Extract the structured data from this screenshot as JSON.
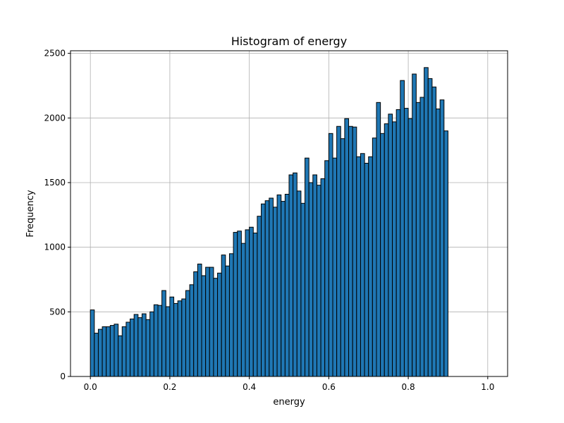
{
  "chart_data": {
    "type": "bar",
    "title": "Histogram of energy",
    "xlabel": "energy",
    "ylabel": "Frequency",
    "xlim": [
      -0.05,
      1.05
    ],
    "ylim": [
      0,
      2520
    ],
    "grid": true,
    "bar_color": "#1f77b4",
    "edge_color": "#000000",
    "x_ticks": [
      0.0,
      0.2,
      0.4,
      0.6,
      0.8,
      1.0
    ],
    "x_tick_labels": [
      "0.0",
      "0.2",
      "0.4",
      "0.6",
      "0.8",
      "1.0"
    ],
    "y_ticks": [
      0,
      500,
      1000,
      1500,
      2000,
      2500
    ],
    "y_tick_labels": [
      "0",
      "500",
      "1000",
      "1500",
      "2000",
      "2500"
    ],
    "bin_start": 0.0,
    "bin_width": 0.01,
    "values": [
      515,
      335,
      365,
      385,
      385,
      395,
      405,
      315,
      385,
      420,
      445,
      480,
      455,
      485,
      440,
      500,
      555,
      550,
      665,
      540,
      615,
      565,
      585,
      600,
      665,
      710,
      810,
      870,
      780,
      845,
      845,
      760,
      800,
      940,
      855,
      950,
      1115,
      1125,
      1030,
      1135,
      1155,
      1110,
      1240,
      1335,
      1360,
      1380,
      1310,
      1405,
      1355,
      1410,
      1560,
      1575,
      1435,
      1340,
      1690,
      1500,
      1560,
      1480,
      1530,
      1670,
      1880,
      1690,
      1935,
      1840,
      1995,
      1935,
      1930,
      1700,
      1725,
      1650,
      1700,
      1845,
      2120,
      1880,
      1955,
      2030,
      1970,
      2065,
      2290,
      2075,
      1995,
      2340,
      2120,
      2160,
      2390,
      2305,
      2240,
      2070,
      2140,
      1900
    ]
  }
}
